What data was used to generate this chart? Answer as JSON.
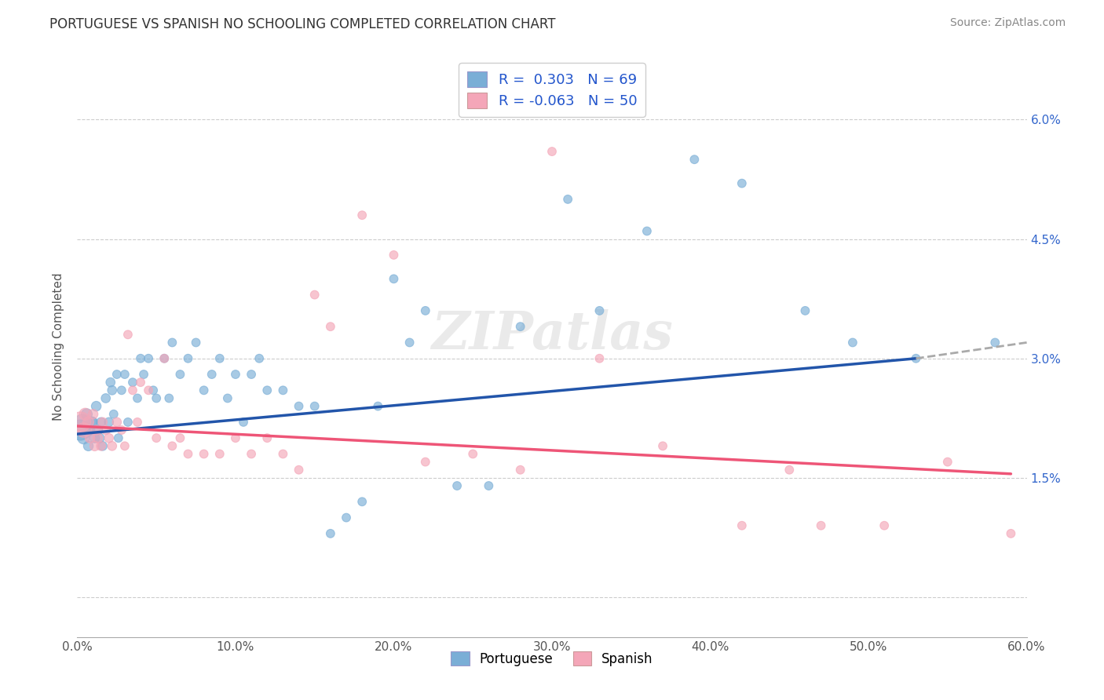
{
  "title": "PORTUGUESE VS SPANISH NO SCHOOLING COMPLETED CORRELATION CHART",
  "source": "Source: ZipAtlas.com",
  "ylabel": "No Schooling Completed",
  "xlim": [
    0.0,
    0.6
  ],
  "ylim": [
    -0.005,
    0.068
  ],
  "xticks": [
    0.0,
    0.1,
    0.2,
    0.3,
    0.4,
    0.5,
    0.6
  ],
  "xtick_labels": [
    "0.0%",
    "10.0%",
    "20.0%",
    "30.0%",
    "40.0%",
    "50.0%",
    "60.0%"
  ],
  "yticks": [
    0.0,
    0.015,
    0.03,
    0.045,
    0.06
  ],
  "ytick_labels": [
    "",
    "1.5%",
    "3.0%",
    "4.5%",
    "6.0%"
  ],
  "legend_r_blue": "0.303",
  "legend_n_blue": "69",
  "legend_r_pink": "-0.063",
  "legend_n_pink": "50",
  "blue_color": "#7aaed6",
  "pink_color": "#f4a6b8",
  "trend_blue_color": "#2255aa",
  "trend_pink_color": "#ee5577",
  "trend_ext_color": "#aaaaaa",
  "watermark": "ZIPatlas",
  "portuguese_x": [
    0.002,
    0.003,
    0.004,
    0.005,
    0.006,
    0.007,
    0.008,
    0.009,
    0.01,
    0.011,
    0.012,
    0.013,
    0.014,
    0.015,
    0.016,
    0.018,
    0.02,
    0.021,
    0.022,
    0.023,
    0.025,
    0.026,
    0.028,
    0.03,
    0.032,
    0.035,
    0.038,
    0.04,
    0.042,
    0.045,
    0.048,
    0.05,
    0.055,
    0.058,
    0.06,
    0.065,
    0.07,
    0.075,
    0.08,
    0.085,
    0.09,
    0.095,
    0.1,
    0.105,
    0.11,
    0.115,
    0.12,
    0.13,
    0.14,
    0.15,
    0.16,
    0.17,
    0.18,
    0.19,
    0.2,
    0.21,
    0.22,
    0.24,
    0.26,
    0.28,
    0.31,
    0.33,
    0.36,
    0.39,
    0.42,
    0.46,
    0.49,
    0.53,
    0.58
  ],
  "portuguese_y": [
    0.021,
    0.022,
    0.02,
    0.021,
    0.023,
    0.019,
    0.021,
    0.022,
    0.022,
    0.02,
    0.024,
    0.021,
    0.02,
    0.022,
    0.019,
    0.025,
    0.022,
    0.027,
    0.026,
    0.023,
    0.028,
    0.02,
    0.026,
    0.028,
    0.022,
    0.027,
    0.025,
    0.03,
    0.028,
    0.03,
    0.026,
    0.025,
    0.03,
    0.025,
    0.032,
    0.028,
    0.03,
    0.032,
    0.026,
    0.028,
    0.03,
    0.025,
    0.028,
    0.022,
    0.028,
    0.03,
    0.026,
    0.026,
    0.024,
    0.024,
    0.008,
    0.01,
    0.012,
    0.024,
    0.04,
    0.032,
    0.036,
    0.014,
    0.014,
    0.034,
    0.05,
    0.036,
    0.046,
    0.055,
    0.052,
    0.036,
    0.032,
    0.03,
    0.032
  ],
  "portuguese_sizes": [
    350,
    200,
    120,
    200,
    100,
    80,
    80,
    100,
    70,
    80,
    80,
    80,
    80,
    70,
    70,
    70,
    70,
    70,
    70,
    60,
    60,
    60,
    60,
    60,
    60,
    60,
    60,
    60,
    60,
    60,
    60,
    60,
    60,
    60,
    60,
    60,
    60,
    60,
    60,
    60,
    60,
    60,
    60,
    60,
    60,
    60,
    60,
    60,
    60,
    60,
    60,
    60,
    60,
    60,
    60,
    60,
    60,
    60,
    60,
    60,
    60,
    60,
    60,
    60,
    60,
    60,
    60,
    60,
    60
  ],
  "spanish_x": [
    0.002,
    0.004,
    0.005,
    0.007,
    0.008,
    0.01,
    0.011,
    0.012,
    0.013,
    0.015,
    0.016,
    0.018,
    0.02,
    0.022,
    0.025,
    0.028,
    0.03,
    0.032,
    0.035,
    0.038,
    0.04,
    0.045,
    0.05,
    0.055,
    0.06,
    0.065,
    0.07,
    0.08,
    0.09,
    0.1,
    0.11,
    0.12,
    0.13,
    0.14,
    0.15,
    0.16,
    0.18,
    0.2,
    0.22,
    0.25,
    0.28,
    0.3,
    0.33,
    0.37,
    0.42,
    0.45,
    0.47,
    0.51,
    0.55,
    0.59
  ],
  "spanish_y": [
    0.022,
    0.021,
    0.023,
    0.022,
    0.02,
    0.023,
    0.019,
    0.021,
    0.02,
    0.019,
    0.022,
    0.021,
    0.02,
    0.019,
    0.022,
    0.021,
    0.019,
    0.033,
    0.026,
    0.022,
    0.027,
    0.026,
    0.02,
    0.03,
    0.019,
    0.02,
    0.018,
    0.018,
    0.018,
    0.02,
    0.018,
    0.02,
    0.018,
    0.016,
    0.038,
    0.034,
    0.048,
    0.043,
    0.017,
    0.018,
    0.016,
    0.056,
    0.03,
    0.019,
    0.009,
    0.016,
    0.009,
    0.009,
    0.017,
    0.008
  ],
  "spanish_sizes": [
    350,
    180,
    120,
    100,
    80,
    80,
    80,
    80,
    80,
    70,
    70,
    70,
    70,
    70,
    70,
    60,
    60,
    60,
    60,
    60,
    60,
    60,
    60,
    60,
    60,
    60,
    60,
    60,
    60,
    60,
    60,
    60,
    60,
    60,
    60,
    60,
    60,
    60,
    60,
    60,
    60,
    60,
    60,
    60,
    60,
    60,
    60,
    60,
    60,
    60
  ],
  "trend_blue_start_x": 0.0,
  "trend_blue_end_x": 0.53,
  "trend_blue_start_y": 0.0205,
  "trend_blue_end_y": 0.03,
  "trend_ext_end_x": 0.6,
  "trend_ext_end_y": 0.032,
  "trend_pink_start_x": 0.0,
  "trend_pink_end_x": 0.59,
  "trend_pink_start_y": 0.0215,
  "trend_pink_end_y": 0.0155
}
